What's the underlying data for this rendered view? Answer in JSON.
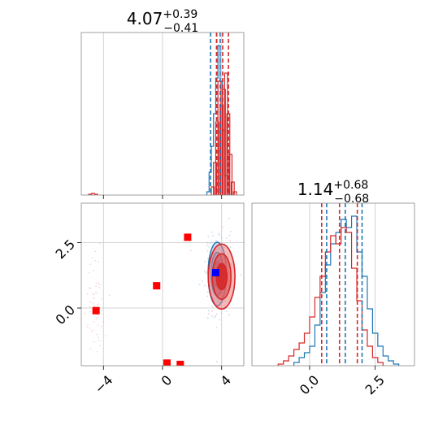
{
  "chart_data": [
    {
      "type": "histogram",
      "title_value": "4.07",
      "title_plus": "+0.39",
      "title_minus": "−0.41",
      "xlim": [
        -5.5,
        5.5
      ],
      "grid": true,
      "series": [
        {
          "color": "#1f77b4",
          "quantiles": [
            3.25,
            3.66,
            3.9
          ],
          "bins": {
            "x": [
              3.0,
              3.15,
              3.3,
              3.45,
              3.6,
              3.75,
              3.9,
              4.05,
              4.2,
              4.35
            ],
            "y": [
              0.02,
              0.14,
              0.3,
              0.5,
              0.72,
              0.92,
              0.7,
              0.4,
              0.12,
              0.03
            ]
          }
        },
        {
          "color": "#d62728",
          "quantiles": [
            3.66,
            4.07,
            4.46
          ],
          "bins": {
            "x": [
              -5.0,
              -4.8,
              -4.6,
              3.3,
              3.45,
              3.6,
              3.75,
              3.9,
              4.05,
              4.2,
              4.35,
              4.5,
              4.65,
              4.8
            ],
            "y": [
              0.005,
              0.01,
              0.005,
              0.05,
              0.2,
              0.45,
              0.7,
              0.55,
              0.65,
              0.75,
              0.5,
              0.25,
              0.08,
              0.02
            ]
          }
        }
      ]
    },
    {
      "type": "scatter_contour",
      "xlim": [
        -5.5,
        5.5
      ],
      "ylim": [
        -2.2,
        4.0
      ],
      "xticks": [
        "−4",
        "0",
        "4"
      ],
      "xtick_values": [
        -4,
        0,
        4
      ],
      "yticks": [
        "0.0",
        "2.5"
      ],
      "ytick_values": [
        0.0,
        2.5
      ],
      "grid": true,
      "red_squares": [
        {
          "x": -4.5,
          "y": -0.1
        },
        {
          "x": -0.4,
          "y": 0.85
        },
        {
          "x": 1.7,
          "y": 2.7
        },
        {
          "x": 0.3,
          "y": -2.1
        },
        {
          "x": 1.2,
          "y": -2.15
        }
      ],
      "blue_square": {
        "x": 3.6,
        "y": 1.35
      },
      "blue_contour": {
        "cx": 3.7,
        "cy": 1.3,
        "sx": 0.28,
        "sy": 0.55,
        "color": "#1f77b4"
      },
      "red_contour": {
        "cx": 4.0,
        "cy": 1.2,
        "sx": 0.45,
        "sy": 0.62,
        "color": "#d62728"
      }
    },
    {
      "type": "histogram",
      "title_value": "1.14",
      "title_plus": "+0.68",
      "title_minus": "−0.68",
      "xlim": [
        -2.2,
        4.0
      ],
      "xticks": [
        "0.0",
        "2.5"
      ],
      "xtick_values": [
        0.0,
        2.5
      ],
      "grid": true,
      "series": [
        {
          "color": "#1f77b4",
          "quantiles": [
            0.65,
            1.36,
            2.0
          ],
          "bins": {
            "x": [
              -0.6,
              -0.4,
              -0.2,
              0.0,
              0.2,
              0.4,
              0.6,
              0.8,
              1.0,
              1.2,
              1.4,
              1.6,
              1.8,
              2.0,
              2.2,
              2.4,
              2.6,
              2.8,
              3.0,
              3.2
            ],
            "y": [
              0.02,
              0.05,
              0.08,
              0.12,
              0.25,
              0.45,
              0.62,
              0.75,
              0.82,
              0.9,
              0.85,
              0.92,
              0.7,
              0.55,
              0.35,
              0.2,
              0.12,
              0.06,
              0.03,
              0.01
            ]
          }
        },
        {
          "color": "#d62728",
          "quantiles": [
            0.46,
            1.14,
            1.82
          ],
          "bins": {
            "x": [
              -1.2,
              -1.0,
              -0.8,
              -0.6,
              -0.4,
              -0.2,
              0.0,
              0.2,
              0.4,
              0.6,
              0.8,
              1.0,
              1.2,
              1.4,
              1.6,
              1.8,
              2.0,
              2.2,
              2.4,
              2.6
            ],
            "y": [
              0.01,
              0.03,
              0.06,
              0.1,
              0.14,
              0.2,
              0.3,
              0.42,
              0.55,
              0.7,
              0.8,
              0.75,
              0.85,
              0.82,
              0.6,
              0.4,
              0.22,
              0.12,
              0.05,
              0.02
            ]
          }
        }
      ]
    }
  ]
}
